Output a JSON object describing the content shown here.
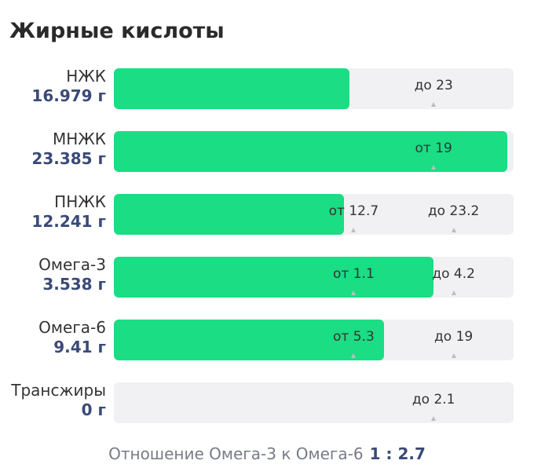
{
  "title": "Жирные кислоты",
  "colors": {
    "fill": "#1add84",
    "track": "#f1f1f3",
    "amount": "#3a4a78"
  },
  "rows": [
    {
      "name": "НЖК",
      "amount": "16.979 г",
      "fill_fraction": 0.59,
      "markers": [
        {
          "text": "до 23",
          "position": 0.8
        }
      ]
    },
    {
      "name": "МНЖК",
      "amount": "23.385 г",
      "fill_fraction": 0.985,
      "markers": [
        {
          "text": "от 19",
          "position": 0.8
        }
      ]
    },
    {
      "name": "ПНЖК",
      "amount": "12.241 г",
      "fill_fraction": 0.575,
      "markers": [
        {
          "text": "от 12.7",
          "position": 0.6
        },
        {
          "text": "до 23.2",
          "position": 0.85
        }
      ]
    },
    {
      "name": "Омега-3",
      "amount": "3.538 г",
      "fill_fraction": 0.8,
      "markers": [
        {
          "text": "от 1.1",
          "position": 0.6
        },
        {
          "text": "до 4.2",
          "position": 0.85
        }
      ]
    },
    {
      "name": "Омега-6",
      "amount": "9.41 г",
      "fill_fraction": 0.675,
      "markers": [
        {
          "text": "от 5.3",
          "position": 0.6
        },
        {
          "text": "до 19",
          "position": 0.85
        }
      ]
    },
    {
      "name": "Трансжиры",
      "amount": "0 г",
      "fill_fraction": 0,
      "markers": [
        {
          "text": "до 2.1",
          "position": 0.8
        }
      ]
    }
  ],
  "footer": {
    "label": "Отношение Омега-3 к Омега-6",
    "ratio": "1 : 2.7"
  }
}
